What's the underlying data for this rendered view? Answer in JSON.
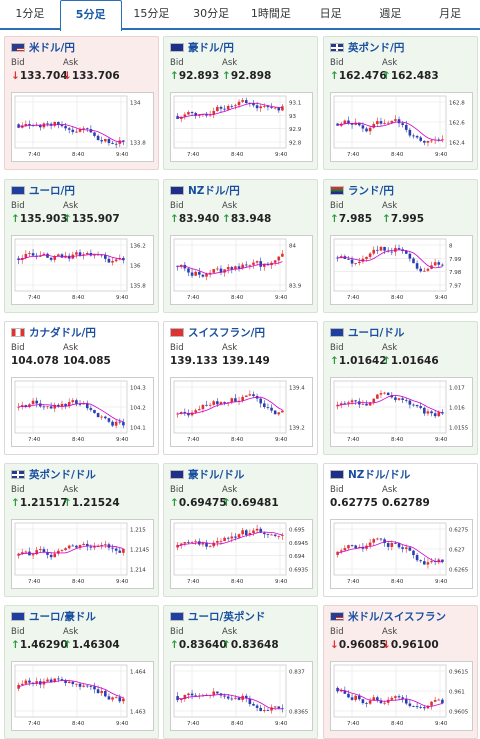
{
  "tabs": [
    {
      "label": "1分足",
      "active": false
    },
    {
      "label": "5分足",
      "active": true
    },
    {
      "label": "15分足",
      "active": false
    },
    {
      "label": "30分足",
      "active": false
    },
    {
      "label": "1時間足",
      "active": false
    },
    {
      "label": "日足",
      "active": false
    },
    {
      "label": "週足",
      "active": false
    },
    {
      "label": "月足",
      "active": false
    }
  ],
  "bid_label": "Bid",
  "ask_label": "Ask",
  "cards": [
    {
      "name": "米ドル/円",
      "flag": "us",
      "state": "down",
      "bid": "133.704",
      "ask": "133.706",
      "dir": "down",
      "yticks": [
        "134",
        "133.8"
      ],
      "xticks": [
        "7:40",
        "8:40",
        "9:40"
      ]
    },
    {
      "name": "豪ドル/円",
      "flag": "au",
      "state": "up",
      "bid": "92.893",
      "ask": "92.898",
      "dir": "up",
      "yticks": [
        "93.1",
        "93",
        "92.9",
        "92.8"
      ],
      "xticks": [
        "7:40",
        "8:40",
        "9:40"
      ]
    },
    {
      "name": "英ポンド/円",
      "flag": "gb",
      "state": "up",
      "bid": "162.476",
      "ask": "162.483",
      "dir": "up",
      "yticks": [
        "162.8",
        "162.6",
        "162.4"
      ],
      "xticks": [
        "7:40",
        "8:40",
        "9:40"
      ]
    },
    {
      "name": "ユーロ/円",
      "flag": "eu",
      "state": "up",
      "bid": "135.903",
      "ask": "135.907",
      "dir": "up",
      "yticks": [
        "136.2",
        "136",
        "135.8"
      ],
      "xticks": [
        "7:40",
        "8:40",
        "9:40"
      ]
    },
    {
      "name": "NZドル/円",
      "flag": "nz",
      "state": "up",
      "bid": "83.940",
      "ask": "83.948",
      "dir": "up",
      "yticks": [
        "84",
        "83.9"
      ],
      "xticks": [
        "7:40",
        "8:40",
        "9:40"
      ]
    },
    {
      "name": "ランド/円",
      "flag": "za",
      "state": "up",
      "bid": "7.985",
      "ask": "7.995",
      "dir": "up",
      "yticks": [
        "8",
        "7.99",
        "7.98",
        "7.97"
      ],
      "xticks": [
        "7:40",
        "8:40",
        "9:40"
      ]
    },
    {
      "name": "カナダドル/円",
      "flag": "ca",
      "state": "neutral",
      "bid": "104.078",
      "ask": "104.085",
      "dir": "none",
      "yticks": [
        "104.3",
        "104.2",
        "104.1"
      ],
      "xticks": [
        "7:40",
        "8:40",
        "9:40"
      ]
    },
    {
      "name": "スイスフラン/円",
      "flag": "ch",
      "state": "neutral",
      "bid": "139.133",
      "ask": "139.149",
      "dir": "none",
      "yticks": [
        "139.4",
        "139.2"
      ],
      "xticks": [
        "7:40",
        "8:40",
        "9:40"
      ]
    },
    {
      "name": "ユーロ/ドル",
      "flag": "eu",
      "state": "up",
      "bid": "1.01642",
      "ask": "1.01646",
      "dir": "up",
      "yticks": [
        "1.017",
        "1.016",
        "1.0155"
      ],
      "xticks": [
        "7:40",
        "8:40",
        "9:40"
      ]
    },
    {
      "name": "英ポンド/ドル",
      "flag": "gb",
      "state": "up",
      "bid": "1.21517",
      "ask": "1.21524",
      "dir": "up",
      "yticks": [
        "1.215",
        "1.2145",
        "1.214"
      ],
      "xticks": [
        "7:40",
        "8:40",
        "9:40"
      ]
    },
    {
      "name": "豪ドル/ドル",
      "flag": "au",
      "state": "up",
      "bid": "0.69475",
      "ask": "0.69481",
      "dir": "up",
      "yticks": [
        "0.695",
        "0.6945",
        "0.694",
        "0.6935"
      ],
      "xticks": [
        "7:40",
        "8:40",
        "9:40"
      ]
    },
    {
      "name": "NZドル/ドル",
      "flag": "nz",
      "state": "neutral",
      "bid": "0.62775",
      "ask": "0.62789",
      "dir": "none",
      "yticks": [
        "0.6275",
        "0.627",
        "0.6265"
      ],
      "xticks": [
        "7:40",
        "8:40",
        "9:40"
      ]
    },
    {
      "name": "ユーロ/豪ドル",
      "flag": "eu",
      "state": "up",
      "bid": "1.46290",
      "ask": "1.46304",
      "dir": "up",
      "yticks": [
        "1.464",
        "1.463"
      ],
      "xticks": [
        "7:40",
        "8:40",
        "9:40"
      ]
    },
    {
      "name": "ユーロ/英ポンド",
      "flag": "eu",
      "state": "up",
      "bid": "0.83640",
      "ask": "0.83648",
      "dir": "up",
      "yticks": [
        "0.837",
        "0.8365"
      ],
      "xticks": [
        "7:40",
        "8:40",
        "9:40"
      ]
    },
    {
      "name": "米ドル/スイスフラン",
      "flag": "us",
      "state": "down",
      "bid": "0.96085",
      "ask": "0.96100",
      "dir": "down",
      "yticks": [
        "0.9615",
        "0.961",
        "0.9605"
      ],
      "xticks": [
        "7:40",
        "8:40",
        "9:40"
      ]
    }
  ],
  "colors": {
    "up": "#2e9a3e",
    "down": "#d33333",
    "candle_up": "#e03030",
    "candle_down": "#2a3fb0",
    "ma": "#d000d0"
  }
}
